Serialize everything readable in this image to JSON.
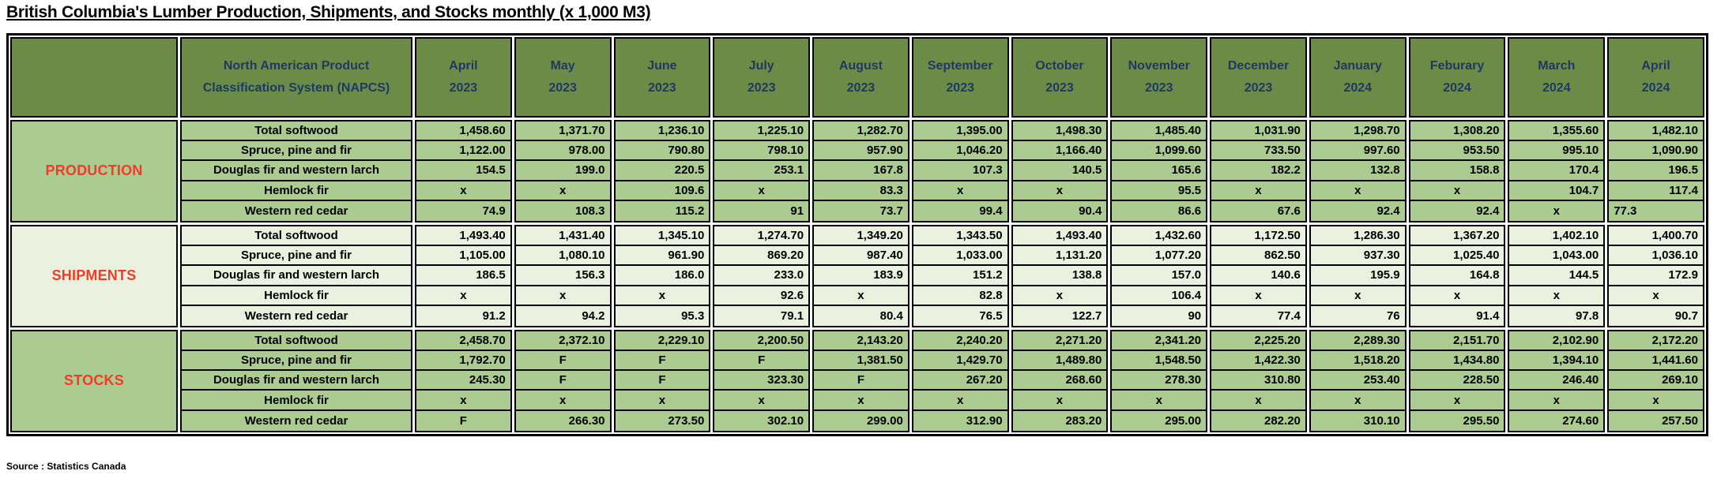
{
  "title": "British Columbia's Lumber Production, Shipments, and Stocks monthly (x 1,000 M3)",
  "source": "Source : Statistics Canada",
  "colors": {
    "header_green": "#6C8B47",
    "light_green": "#ACCB90",
    "pale_green": "#EBF1DF",
    "header_text_navy": "#1F3864",
    "section_label_red": "#F43B28",
    "border_black": "#000000"
  },
  "chart_data": {
    "type": "table",
    "napcs_header": "North American Product Classification System (NAPCS)",
    "columns": [
      {
        "month": "April",
        "year": "2023"
      },
      {
        "month": "May",
        "year": "2023"
      },
      {
        "month": "June",
        "year": "2023"
      },
      {
        "month": "July",
        "year": "2023"
      },
      {
        "month": "August",
        "year": "2023"
      },
      {
        "month": "September",
        "year": "2023"
      },
      {
        "month": "October",
        "year": "2023"
      },
      {
        "month": "November",
        "year": "2023"
      },
      {
        "month": "December",
        "year": "2023"
      },
      {
        "month": "January",
        "year": "2024"
      },
      {
        "month": "Feburary",
        "year": "2024"
      },
      {
        "month": "March",
        "year": "2024"
      },
      {
        "month": "April",
        "year": "2024"
      }
    ],
    "row_labels": [
      "Total softwood",
      "Spruce, pine and fir",
      "Douglas fir and western larch",
      "Hemlock fir",
      "Western red cedar"
    ],
    "sections": [
      {
        "label": "PRODUCTION",
        "tint": "green",
        "rows": [
          {
            "name": "Total softwood",
            "values": [
              "1,458.60",
              "1,371.70",
              "1,236.10",
              "1,225.10",
              "1,282.70",
              "1,395.00",
              "1,498.30",
              "1,485.40",
              "1,031.90",
              "1,298.70",
              "1,308.20",
              "1,355.60",
              "1,482.10"
            ]
          },
          {
            "name": "Spruce, pine and fir",
            "values": [
              "1,122.00",
              "978.00",
              "790.80",
              "798.10",
              "957.90",
              "1,046.20",
              "1,166.40",
              "1,099.60",
              "733.50",
              "997.60",
              "953.50",
              "995.10",
              "1,090.90"
            ]
          },
          {
            "name": "Douglas fir and western larch",
            "values": [
              "154.5",
              "199.0",
              "220.5",
              "253.1",
              "167.8",
              "107.3",
              "140.5",
              "165.6",
              "182.2",
              "132.8",
              "158.8",
              "170.4",
              "196.5"
            ]
          },
          {
            "name": "Hemlock fir",
            "values": [
              "x",
              "x",
              "109.6",
              "x",
              "83.3",
              "x",
              "x",
              "95.5",
              "x",
              "x",
              "x",
              "104.7",
              "117.4"
            ]
          },
          {
            "name": "Western red cedar",
            "values": [
              "74.9",
              "108.3",
              "115.2",
              "91",
              "73.7",
              "99.4",
              "90.4",
              "86.6",
              "67.6",
              "92.4",
              "92.4",
              "x",
              "77.3"
            ]
          }
        ]
      },
      {
        "label": "SHIPMENTS",
        "tint": "pale",
        "rows": [
          {
            "name": "Total softwood",
            "values": [
              "1,493.40",
              "1,431.40",
              "1,345.10",
              "1,274.70",
              "1,349.20",
              "1,343.50",
              "1,493.40",
              "1,432.60",
              "1,172.50",
              "1,286.30",
              "1,367.20",
              "1,402.10",
              "1,400.70"
            ]
          },
          {
            "name": "Spruce, pine and fir",
            "values": [
              "1,105.00",
              "1,080.10",
              "961.90",
              "869.20",
              "987.40",
              "1,033.00",
              "1,131.20",
              "1,077.20",
              "862.50",
              "937.30",
              "1,025.40",
              "1,043.00",
              "1,036.10"
            ]
          },
          {
            "name": "Douglas fir and western larch",
            "values": [
              "186.5",
              "156.3",
              "186.0",
              "233.0",
              "183.9",
              "151.2",
              "138.8",
              "157.0",
              "140.6",
              "195.9",
              "164.8",
              "144.5",
              "172.9"
            ]
          },
          {
            "name": "Hemlock fir",
            "values": [
              "x",
              "x",
              "x",
              "92.6",
              "x",
              "82.8",
              "x",
              "106.4",
              "x",
              "x",
              "x",
              "x",
              "x"
            ]
          },
          {
            "name": "Western red cedar",
            "values": [
              "91.2",
              "94.2",
              "95.3",
              "79.1",
              "80.4",
              "76.5",
              "122.7",
              "90",
              "77.4",
              "76",
              "91.4",
              "97.8",
              "90.7"
            ]
          }
        ]
      },
      {
        "label": "STOCKS",
        "tint": "green",
        "rows": [
          {
            "name": "Total softwood",
            "values": [
              "2,458.70",
              "2,372.10",
              "2,229.10",
              "2,200.50",
              "2,143.20",
              "2,240.20",
              "2,271.20",
              "2,341.20",
              "2,225.20",
              "2,289.30",
              "2,151.70",
              "2,102.90",
              "2,172.20"
            ]
          },
          {
            "name": "Spruce, pine and fir",
            "values": [
              "1,792.70",
              "F",
              "F",
              "F",
              "1,381.50",
              "1,429.70",
              "1,489.80",
              "1,548.50",
              "1,422.30",
              "1,518.20",
              "1,434.80",
              "1,394.10",
              "1,441.60"
            ]
          },
          {
            "name": "Douglas fir and western larch",
            "values": [
              "245.30",
              "F",
              "F",
              "323.30",
              "F",
              "267.20",
              "268.60",
              "278.30",
              "310.80",
              "253.40",
              "228.50",
              "246.40",
              "269.10"
            ]
          },
          {
            "name": "Hemlock fir",
            "values": [
              "x",
              "x",
              "x",
              "x",
              "x",
              "x",
              "x",
              "x",
              "x",
              "x",
              "x",
              "x",
              "x"
            ]
          },
          {
            "name": "Western red cedar",
            "values": [
              "F",
              "266.30",
              "273.50",
              "302.10",
              "299.00",
              "312.90",
              "283.20",
              "295.00",
              "282.20",
              "310.10",
              "295.50",
              "274.60",
              "257.50"
            ]
          }
        ]
      }
    ],
    "suppressed_symbol": "x",
    "flag_symbol": "F",
    "align_overrides": [
      {
        "section": 0,
        "row": 4,
        "col": 12,
        "align": "left"
      }
    ]
  }
}
